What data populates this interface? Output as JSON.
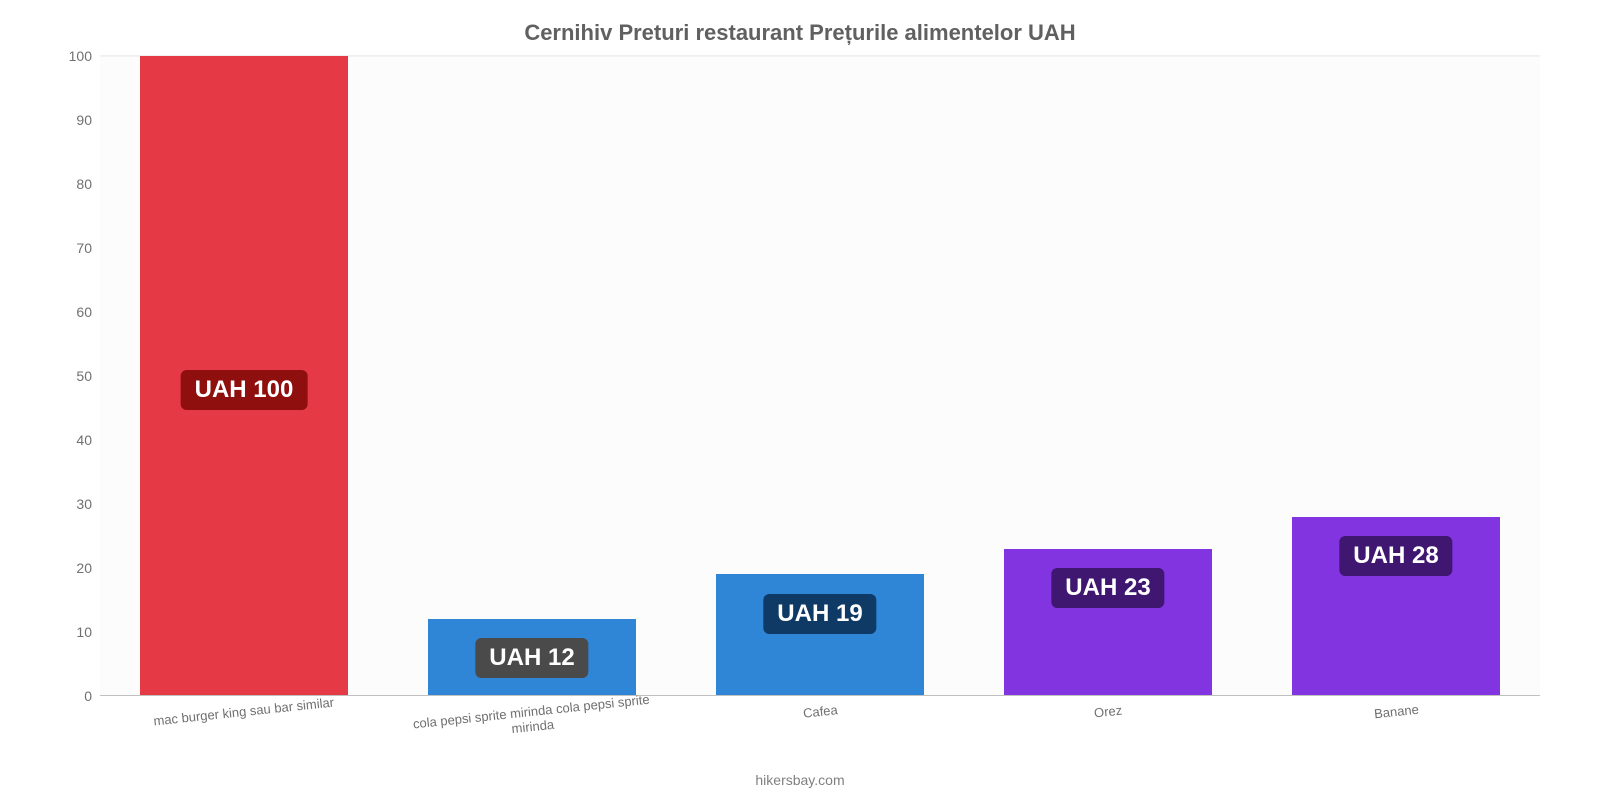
{
  "chart": {
    "type": "bar",
    "title": "Cernihiv Preturi restaurant Prețurile alimentelor UAH",
    "title_fontsize": 22,
    "title_color": "#606060",
    "background_color": "#ffffff",
    "plot_bg_color": "#fcfcfc",
    "grid_color": "#f0f0f0",
    "axis_line_color": "#c0c0c0",
    "ylim": [
      0,
      100
    ],
    "ytick_step": 10,
    "ytick_fontsize": 14,
    "ytick_color": "#707070",
    "xlabel_fontsize": 13,
    "xlabel_color": "#707070",
    "xlabel_rotation_deg": -6,
    "bar_width_pct": 72,
    "value_badge_fontsize": 24,
    "categories": [
      "mac burger king sau bar similar",
      "cola pepsi sprite mirinda cola pepsi sprite mirinda",
      "Cafea",
      "Orez",
      "Banane"
    ],
    "values": [
      100,
      12,
      19,
      23,
      28
    ],
    "value_labels": [
      "UAH 100",
      "UAH 12",
      "UAH 19",
      "UAH 23",
      "UAH 28"
    ],
    "bar_colors": [
      "#e63946",
      "#2f86d7",
      "#2f86d7",
      "#8134e0",
      "#8134e0"
    ],
    "badge_bg_colors": [
      "#8f0f0f",
      "#4a4a4a",
      "#0f3a66",
      "#3f1770",
      "#3f1770"
    ],
    "badge_text_color": "#ffffff",
    "badge_offsets_pct": [
      49,
      3,
      3,
      3,
      3
    ],
    "credit": "hikersbay.com",
    "credit_color": "#808080",
    "credit_fontsize": 14
  }
}
